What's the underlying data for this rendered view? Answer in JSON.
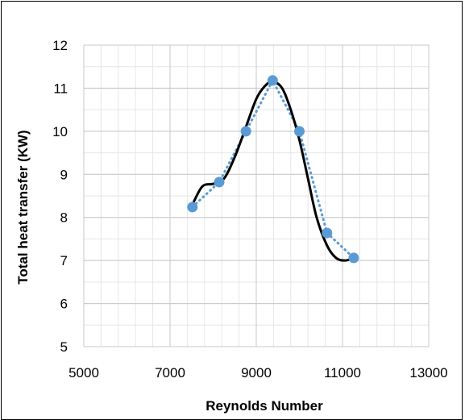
{
  "chart_data": {
    "type": "scatter",
    "title": "",
    "xlabel": "Reynolds Number",
    "ylabel": "Total heat transfer (KW)",
    "xlim": [
      5000,
      13000
    ],
    "ylim": [
      5,
      12
    ],
    "x_ticks": [
      "5000",
      "7000",
      "9000",
      "11000",
      "13000"
    ],
    "y_ticks": [
      "5",
      "6",
      "7",
      "8",
      "9",
      "10",
      "11",
      "12"
    ],
    "x_minor_step": 400,
    "y_minor_step": 0.5,
    "grid": true,
    "legend": "none",
    "series": [
      {
        "style": "markers-dotted-line",
        "color": "#5b9bd5",
        "points": [
          {
            "x": 7520,
            "y": 8.24
          },
          {
            "x": 8140,
            "y": 8.82
          },
          {
            "x": 8760,
            "y": 10.0
          },
          {
            "x": 9380,
            "y": 11.18
          },
          {
            "x": 10000,
            "y": 10.0
          },
          {
            "x": 10640,
            "y": 7.64
          },
          {
            "x": 11260,
            "y": 7.06
          }
        ]
      },
      {
        "style": "smooth-trend-line",
        "color": "#000000",
        "points": [
          {
            "x": 7520,
            "y": 8.3
          },
          {
            "x": 7750,
            "y": 8.72
          },
          {
            "x": 8000,
            "y": 8.78
          },
          {
            "x": 8250,
            "y": 8.9
          },
          {
            "x": 8500,
            "y": 9.4
          },
          {
            "x": 8760,
            "y": 10.1
          },
          {
            "x": 9000,
            "y": 10.75
          },
          {
            "x": 9200,
            "y": 11.05
          },
          {
            "x": 9380,
            "y": 11.15
          },
          {
            "x": 9600,
            "y": 11.0
          },
          {
            "x": 9800,
            "y": 10.5
          },
          {
            "x": 10000,
            "y": 9.8
          },
          {
            "x": 10200,
            "y": 8.9
          },
          {
            "x": 10400,
            "y": 8.0
          },
          {
            "x": 10640,
            "y": 7.35
          },
          {
            "x": 10850,
            "y": 7.06
          },
          {
            "x": 11050,
            "y": 7.0
          },
          {
            "x": 11260,
            "y": 7.05
          }
        ]
      }
    ]
  }
}
